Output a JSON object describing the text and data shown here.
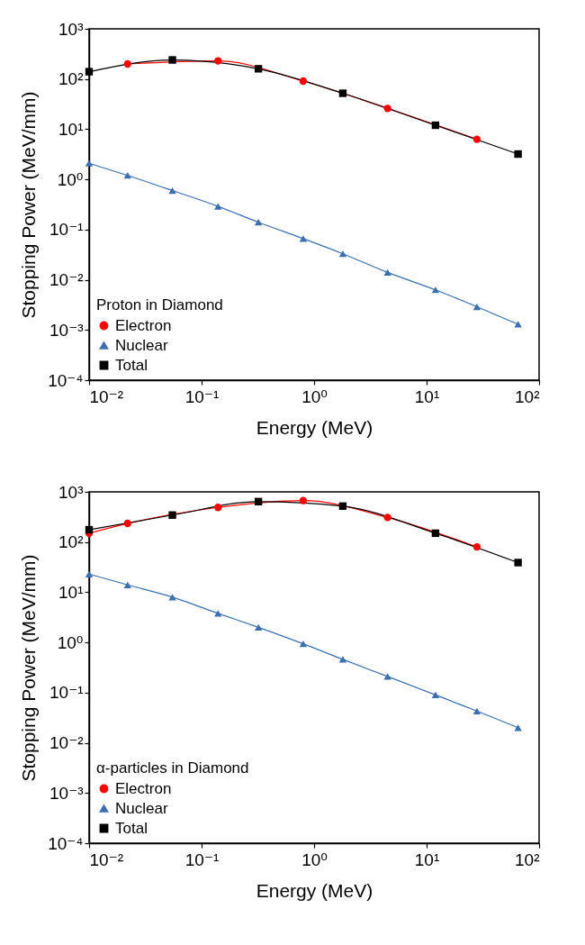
{
  "chart_data": [
    {
      "type": "line",
      "xlabel": "Energy (MeV)",
      "ylabel": "Stopping Power (MeV/mm)",
      "legend_title": "Proton in Diamond",
      "legend": "bottom left",
      "log": "xy",
      "grid": false,
      "xlim": [
        0.01,
        100
      ],
      "ylim": [
        0.0001,
        1000
      ],
      "xticks": [
        {
          "value": 0.01,
          "label": "10⁻²"
        },
        {
          "value": 0.1,
          "label": "10⁻¹"
        },
        {
          "value": 1,
          "label": "10⁰"
        },
        {
          "value": 10,
          "label": "10¹"
        },
        {
          "value": 100,
          "label": "10²"
        }
      ],
      "yticks": [
        {
          "value": 0.0001,
          "label": "10⁻⁴"
        },
        {
          "value": 0.001,
          "label": "10⁻³"
        },
        {
          "value": 0.01,
          "label": "10⁻²"
        },
        {
          "value": 0.1,
          "label": "10⁻¹"
        },
        {
          "value": 1,
          "label": "10⁰"
        },
        {
          "value": 10,
          "label": "10¹"
        },
        {
          "value": 100,
          "label": "10²"
        },
        {
          "value": 1000,
          "label": "10³"
        }
      ],
      "series": [
        {
          "name": "Electron",
          "color": "#ff0000",
          "marker": "circle",
          "x": [
            0.022,
            0.14,
            0.8,
            4.5,
            28
          ],
          "values": [
            200,
            230,
            91,
            26,
            6.3
          ]
        },
        {
          "name": "Nuclear",
          "color": "#3a6fb0",
          "marker": "triangle",
          "x": [
            0.01,
            0.022,
            0.055,
            0.14,
            0.32,
            0.8,
            1.8,
            4.5,
            12,
            28,
            65
          ],
          "values": [
            2.1,
            1.2,
            0.6,
            0.29,
            0.14,
            0.066,
            0.033,
            0.014,
            0.0063,
            0.0029,
            0.0013
          ]
        },
        {
          "name": "Total",
          "color": "#000000",
          "marker": "square",
          "x": [
            0.01,
            0.055,
            0.32,
            1.8,
            12,
            65
          ],
          "values": [
            140,
            240,
            160,
            52,
            12,
            3.2
          ]
        }
      ]
    },
    {
      "type": "line",
      "xlabel": "Energy (MeV)",
      "ylabel": "Stopping Power (MeV/mm)",
      "legend_title": "α-particles in Diamond",
      "legend": "bottom left",
      "log": "xy",
      "grid": false,
      "xlim": [
        0.01,
        100
      ],
      "ylim": [
        0.0001,
        1000
      ],
      "xticks": [
        {
          "value": 0.01,
          "label": "10⁻²"
        },
        {
          "value": 0.1,
          "label": "10⁻¹"
        },
        {
          "value": 1,
          "label": "10⁰"
        },
        {
          "value": 10,
          "label": "10¹"
        },
        {
          "value": 100,
          "label": "10²"
        }
      ],
      "yticks": [
        {
          "value": 0.0001,
          "label": "10⁻⁴"
        },
        {
          "value": 0.001,
          "label": "10⁻³"
        },
        {
          "value": 0.01,
          "label": "10⁻²"
        },
        {
          "value": 0.1,
          "label": "10⁻¹"
        },
        {
          "value": 1,
          "label": "10⁰"
        },
        {
          "value": 10,
          "label": "10¹"
        },
        {
          "value": 100,
          "label": "10²"
        },
        {
          "value": 1000,
          "label": "10³"
        }
      ],
      "series": [
        {
          "name": "Electron",
          "color": "#ff0000",
          "marker": "circle",
          "x": [
            0.01,
            0.022,
            0.14,
            0.8,
            4.5,
            28
          ],
          "values": [
            150,
            235,
            490,
            670,
            310,
            80
          ]
        },
        {
          "name": "Nuclear",
          "color": "#3a6fb0",
          "marker": "triangle",
          "x": [
            0.01,
            0.022,
            0.055,
            0.14,
            0.32,
            0.8,
            1.8,
            4.5,
            12,
            28,
            65
          ],
          "values": [
            23,
            14,
            8,
            3.8,
            2,
            0.94,
            0.46,
            0.21,
            0.09,
            0.043,
            0.02
          ]
        },
        {
          "name": "Total",
          "color": "#000000",
          "marker": "square",
          "x": [
            0.01,
            0.055,
            0.32,
            1.8,
            12,
            65
          ],
          "values": [
            176,
            345,
            640,
            520,
            150,
            39
          ]
        }
      ]
    }
  ]
}
